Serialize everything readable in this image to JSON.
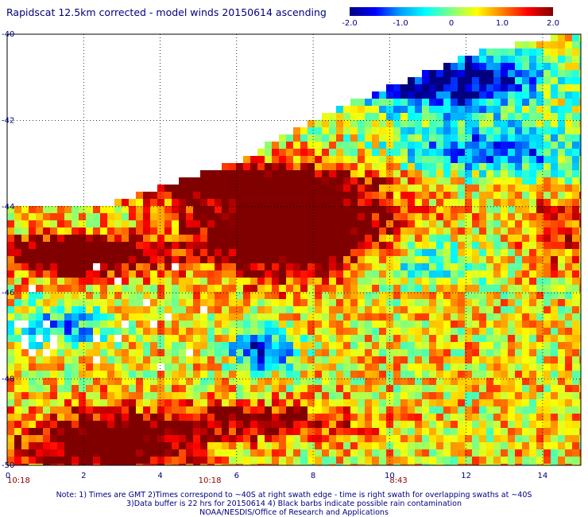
{
  "chart_data": {
    "type": "heatmap",
    "title": "Rapidscat 12.5km corrected - model winds 20150614 ascending",
    "x_ticks": [
      "0",
      "2",
      "4",
      "6",
      "8",
      "10",
      "12",
      "14"
    ],
    "y_ticks": [
      "-40",
      "-42",
      "-44",
      "-46",
      "-48",
      "-50"
    ],
    "xlim": [
      0,
      15
    ],
    "ylim": [
      -50,
      -40
    ],
    "grid": true,
    "colorbar": {
      "range": [
        -2.0,
        2.0
      ],
      "tick_labels": [
        "-2.0",
        "-1.0",
        "0",
        "1.0",
        "2.0"
      ],
      "colors": [
        "#000080",
        "#0000ff",
        "#00a0ff",
        "#00ffff",
        "#80ff80",
        "#ffff00",
        "#ff8000",
        "#ff0000",
        "#800000"
      ]
    },
    "time_labels": [
      {
        "x": 0.0,
        "text": "10:18"
      },
      {
        "x": 5.0,
        "text": "10:18"
      },
      {
        "x": 10.0,
        "text": "8:43"
      }
    ]
  },
  "notes": {
    "line1": "Note: 1) Times are GMT 2)Times correspond to ~40S at right swath edge - time is right swath for overlapping swaths at ~40S",
    "line2": "3)Data buffer is 22 hrs for 20150614 4) Black barbs indicate possible rain contamination",
    "line3": "NOAA/NESDIS/Office of Research and Applications"
  }
}
